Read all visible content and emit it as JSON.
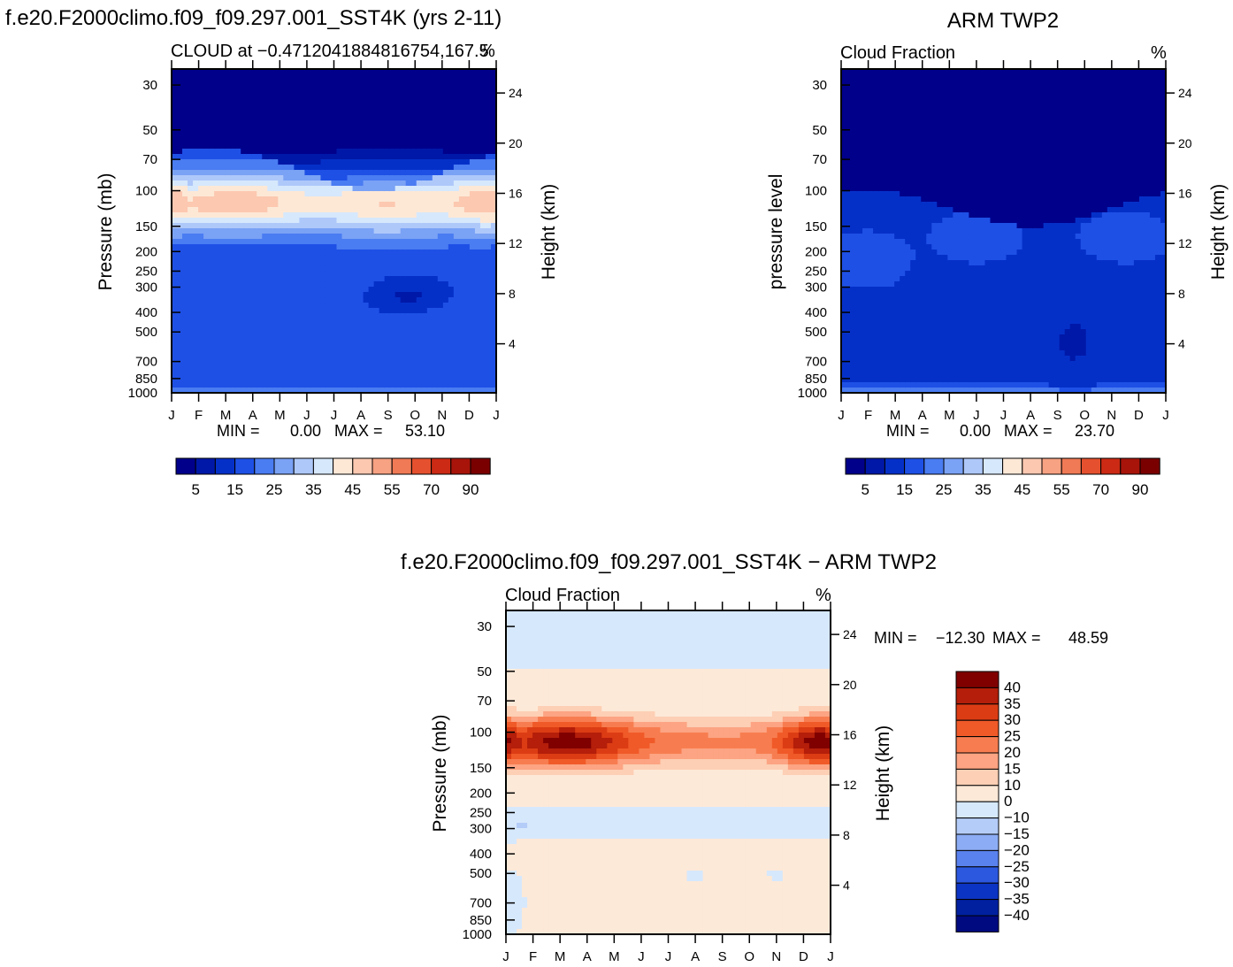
{
  "chart_data": [
    {
      "type": "contour",
      "title": "f.e20.F2000climo.f09_f09.297.001_SST4K (yrs 2-11)",
      "subtitle_left": "CLOUD at -0.4712041884816754,167.5",
      "subtitle_right": "%",
      "ylabel": "Pressure (mb)",
      "ylabel_right": "Height (km)",
      "stats": {
        "min_label": "MIN =",
        "min": "0.00",
        "max_label": "MAX =",
        "max": "53.10"
      },
      "months": [
        "J",
        "F",
        "M",
        "A",
        "M",
        "J",
        "J",
        "A",
        "S",
        "O",
        "N",
        "D",
        "J"
      ],
      "pressure_ticks": [
        30,
        50,
        70,
        100,
        150,
        200,
        250,
        300,
        400,
        500,
        700,
        850,
        1000
      ],
      "height_ticks": [
        24,
        20,
        16,
        12,
        8,
        4
      ],
      "colorbar_labels": [
        "5",
        "15",
        "25",
        "35",
        "45",
        "55",
        "70",
        "90"
      ],
      "field": "model"
    },
    {
      "type": "contour",
      "title": "ARM TWP2",
      "subtitle_left": "Cloud Fraction",
      "subtitle_right": "%",
      "ylabel": "pressure level",
      "ylabel_right": "Height (km)",
      "stats": {
        "min_label": "MIN =",
        "min": "0.00",
        "max_label": "MAX =",
        "max": "23.70"
      },
      "months": [
        "J",
        "F",
        "M",
        "A",
        "M",
        "J",
        "J",
        "A",
        "S",
        "O",
        "N",
        "D",
        "J"
      ],
      "pressure_ticks": [
        30,
        50,
        70,
        100,
        150,
        200,
        250,
        300,
        400,
        500,
        700,
        850,
        1000
      ],
      "height_ticks": [
        24,
        20,
        16,
        12,
        8,
        4
      ],
      "colorbar_labels": [
        "5",
        "15",
        "25",
        "35",
        "45",
        "55",
        "70",
        "90"
      ],
      "field": "obs"
    },
    {
      "type": "contour",
      "title": "f.e20.F2000climo.f09_f09.297.001_SST4K - ARM TWP2",
      "subtitle_left": "Cloud Fraction",
      "subtitle_right": "%",
      "ylabel": "Pressure (mb)",
      "ylabel_right": "Height (km)",
      "stats": {
        "min_label": "MIN =",
        "min": "-12.30",
        "max_label": "MAX =",
        "max": "48.59"
      },
      "months": [
        "J",
        "F",
        "M",
        "A",
        "M",
        "J",
        "J",
        "A",
        "S",
        "O",
        "N",
        "D",
        "J"
      ],
      "pressure_ticks": [
        30,
        50,
        70,
        100,
        150,
        200,
        250,
        300,
        400,
        500,
        700,
        850,
        1000
      ],
      "height_ticks": [
        24,
        20,
        16,
        12,
        8,
        4
      ],
      "colorbar_labels": [
        "40",
        "35",
        "30",
        "25",
        "20",
        "15",
        "10",
        "0",
        "-10",
        "-15",
        "-20",
        "-25",
        "-30",
        "-35",
        "-40"
      ],
      "field": "diff"
    }
  ],
  "colors": {
    "seq": [
      "#00008b",
      "#0018a8",
      "#0530c8",
      "#1e50e6",
      "#4a7cf2",
      "#7aa2f5",
      "#aec8fa",
      "#d6e8fc",
      "#fde8d6",
      "#fcc8b0",
      "#f7a282",
      "#f07a55",
      "#e5502e",
      "#cc2a14",
      "#a8140a",
      "#7a0000"
    ],
    "diff": [
      "#800000",
      "#b41e0a",
      "#dc3c14",
      "#f05a28",
      "#f77d50",
      "#fca483",
      "#fdcfb4",
      "#fde9d8",
      "#d6e8fc",
      "#b4ccf8",
      "#8cacf5",
      "#5a82ee",
      "#2c58e0",
      "#0c34c4",
      "#0020a0",
      "#000a80"
    ]
  }
}
